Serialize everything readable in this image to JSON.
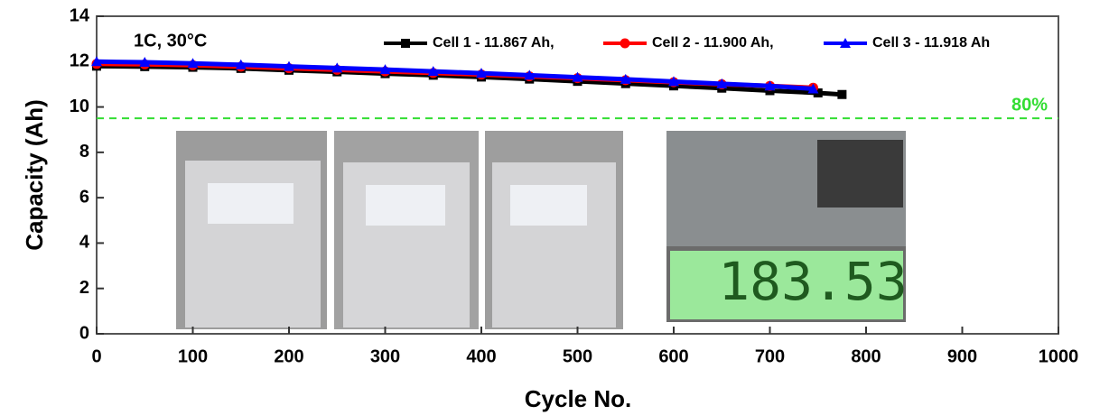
{
  "chart_data": {
    "type": "line",
    "annotation": "1C, 30°C",
    "xlabel": "Cycle No.",
    "ylabel": "Capacity (Ah)",
    "threshold": {
      "value": 9.5,
      "label": "80%",
      "color": "#33dd33"
    },
    "photo_display": "183.53",
    "xlim": [
      0,
      1000
    ],
    "xticks": [
      0,
      100,
      200,
      300,
      400,
      500,
      600,
      700,
      800,
      900,
      1000
    ],
    "ylim": [
      0,
      14
    ],
    "yticks": [
      0,
      2,
      4,
      6,
      8,
      10,
      12,
      14
    ],
    "series": [
      {
        "name": "Cell 1 - 11.867 Ah,",
        "color": "#000000",
        "marker": "square",
        "x": [
          0,
          50,
          100,
          150,
          200,
          250,
          300,
          350,
          400,
          450,
          500,
          550,
          600,
          650,
          700,
          750,
          775
        ],
        "values": [
          11.8,
          11.78,
          11.75,
          11.7,
          11.62,
          11.55,
          11.47,
          11.4,
          11.32,
          11.23,
          11.13,
          11.03,
          10.93,
          10.83,
          10.72,
          10.62,
          10.55
        ]
      },
      {
        "name": "Cell 2 - 11.900 Ah,",
        "color": "#ff0000",
        "marker": "circle",
        "x": [
          0,
          50,
          100,
          150,
          200,
          250,
          300,
          350,
          400,
          450,
          500,
          550,
          600,
          650,
          700,
          745
        ],
        "values": [
          11.9,
          11.88,
          11.84,
          11.78,
          11.71,
          11.64,
          11.57,
          11.5,
          11.43,
          11.35,
          11.27,
          11.18,
          11.09,
          11.0,
          10.93,
          10.85
        ]
      },
      {
        "name": "Cell 3 - 11.918 Ah",
        "color": "#0000ff",
        "marker": "triangle",
        "x": [
          0,
          50,
          100,
          150,
          200,
          250,
          300,
          350,
          400,
          450,
          500,
          550,
          600,
          650,
          700,
          745
        ],
        "values": [
          12.0,
          11.97,
          11.92,
          11.86,
          11.79,
          11.72,
          11.65,
          11.57,
          11.49,
          11.4,
          11.31,
          11.22,
          11.12,
          11.02,
          10.93,
          10.8
        ]
      }
    ]
  }
}
